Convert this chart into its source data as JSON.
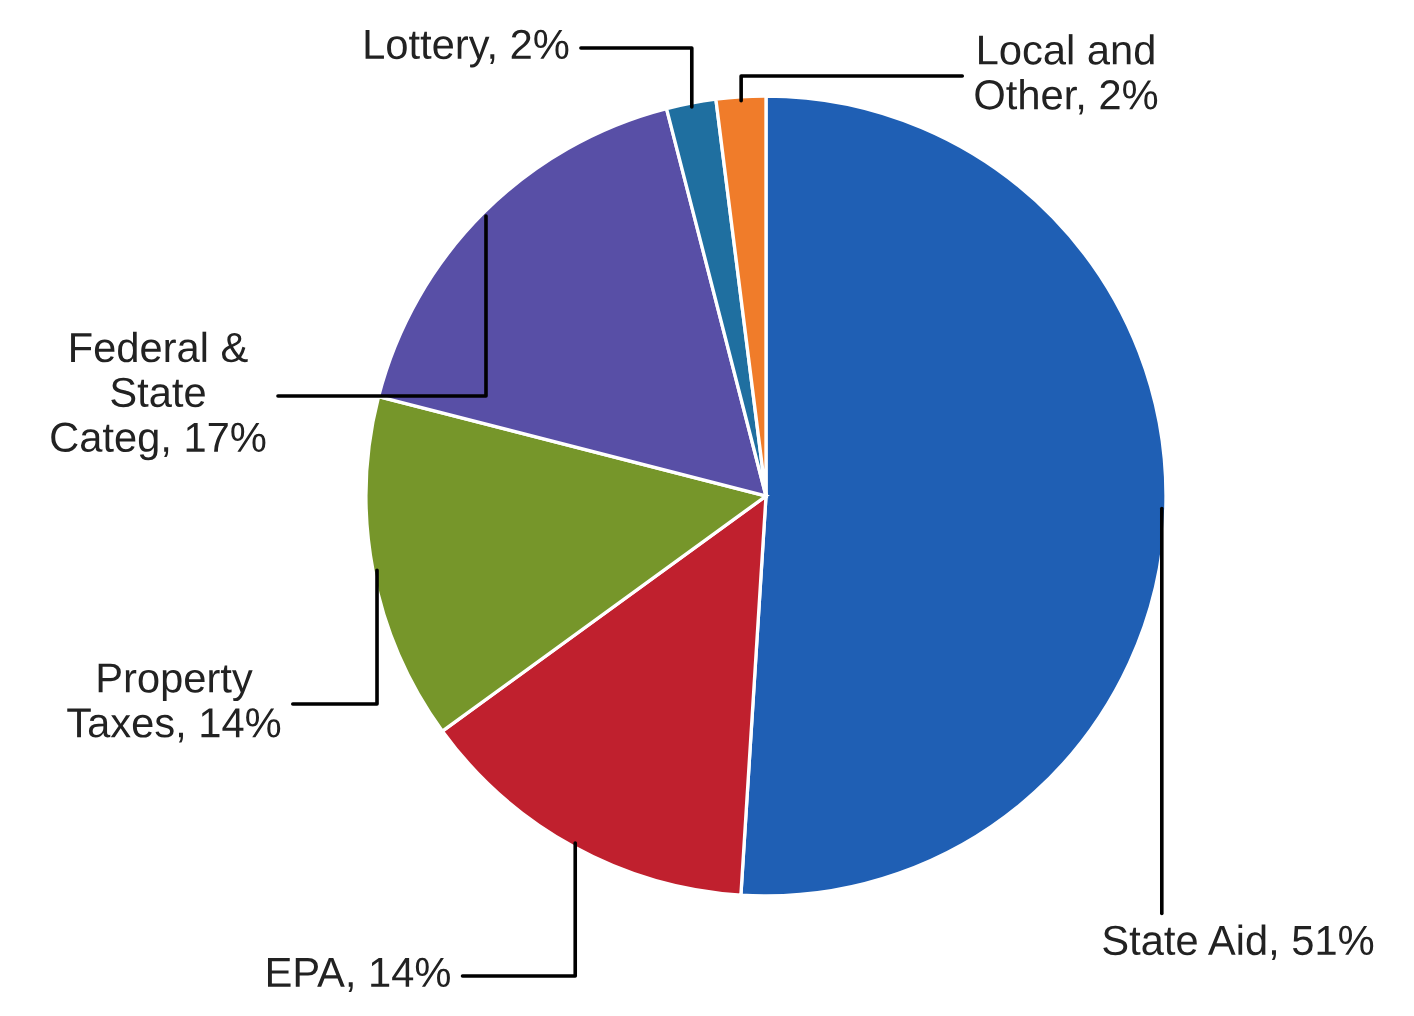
{
  "chart_data": {
    "type": "pie",
    "categories": [
      "State Aid",
      "EPA",
      "Property\nTaxes",
      "Federal &\nState\nCateg",
      "Lottery",
      "Local and\nOther"
    ],
    "values": [
      51,
      14,
      14,
      17,
      2,
      2
    ],
    "colors": [
      "#1f5fb4",
      "#c0202e",
      "#76962a",
      "#584fa6",
      "#1f6fa0",
      "#f07c2a"
    ],
    "value_labels": [
      "51%",
      "14%",
      "14%",
      "17%",
      "2%",
      "2%"
    ],
    "legend": false
  }
}
